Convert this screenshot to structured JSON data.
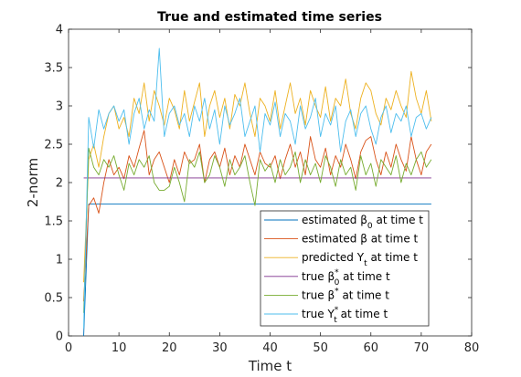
{
  "chart_data": {
    "type": "line",
    "title": "True and estimated time series",
    "xlabel": "Time t",
    "ylabel": "2-norm",
    "xlim": [
      0,
      80
    ],
    "ylim": [
      0,
      4
    ],
    "xticks": [
      "0",
      "10",
      "20",
      "30",
      "40",
      "50",
      "60",
      "70",
      "80"
    ],
    "yticks": [
      "0",
      "0.5",
      "1",
      "1.5",
      "2",
      "2.5",
      "3",
      "3.5",
      "4"
    ],
    "grid": false,
    "legend_position": "bottom-right",
    "x": [
      3,
      4,
      5,
      6,
      7,
      8,
      9,
      10,
      11,
      12,
      13,
      14,
      15,
      16,
      17,
      18,
      19,
      20,
      21,
      22,
      23,
      24,
      25,
      26,
      27,
      28,
      29,
      30,
      31,
      32,
      33,
      34,
      35,
      36,
      37,
      38,
      39,
      40,
      41,
      42,
      43,
      44,
      45,
      46,
      47,
      48,
      49,
      50,
      51,
      52,
      53,
      54,
      55,
      56,
      57,
      58,
      59,
      60,
      61,
      62,
      63,
      64,
      65,
      66,
      67,
      68,
      69,
      70,
      71,
      72
    ],
    "series": [
      {
        "name": "estimated β0 at time t",
        "color": "#0072bd",
        "values": [
          0.0,
          1.72,
          1.72,
          1.72,
          1.72,
          1.72,
          1.72,
          1.72,
          1.72,
          1.72,
          1.72,
          1.72,
          1.72,
          1.72,
          1.72,
          1.72,
          1.72,
          1.72,
          1.72,
          1.72,
          1.72,
          1.72,
          1.72,
          1.72,
          1.72,
          1.72,
          1.72,
          1.72,
          1.72,
          1.72,
          1.72,
          1.72,
          1.72,
          1.72,
          1.72,
          1.72,
          1.72,
          1.72,
          1.72,
          1.72,
          1.72,
          1.72,
          1.72,
          1.72,
          1.72,
          1.72,
          1.72,
          1.72,
          1.72,
          1.72,
          1.72,
          1.72,
          1.72,
          1.72,
          1.72,
          1.72,
          1.72,
          1.72,
          1.72,
          1.72,
          1.72,
          1.72,
          1.72,
          1.72,
          1.72,
          1.72,
          1.72,
          1.72,
          1.72,
          1.72
        ]
      },
      {
        "name": "estimated β at time t",
        "color": "#d95319",
        "values": [
          0.45,
          1.7,
          1.8,
          1.6,
          2.0,
          2.3,
          2.1,
          2.2,
          2.05,
          2.35,
          2.2,
          2.45,
          2.68,
          2.1,
          2.3,
          2.4,
          2.2,
          2.0,
          2.3,
          2.1,
          2.4,
          2.25,
          2.3,
          2.5,
          2.0,
          2.3,
          2.4,
          2.2,
          2.45,
          2.1,
          2.35,
          2.2,
          2.5,
          2.3,
          2.1,
          2.4,
          2.25,
          2.2,
          2.35,
          2.05,
          2.3,
          2.5,
          2.2,
          2.4,
          2.1,
          2.6,
          2.3,
          2.2,
          2.45,
          2.1,
          2.35,
          2.2,
          2.5,
          2.3,
          2.05,
          2.4,
          2.55,
          2.6,
          2.3,
          2.1,
          2.4,
          2.2,
          2.5,
          2.3,
          2.15,
          2.6,
          2.3,
          2.1,
          2.4,
          2.5
        ]
      },
      {
        "name": "predicted Yt at time t",
        "color": "#edb120",
        "values": [
          0.7,
          2.3,
          2.5,
          2.2,
          2.6,
          2.9,
          3.0,
          2.7,
          2.85,
          2.6,
          3.1,
          2.9,
          3.3,
          2.8,
          3.2,
          3.0,
          2.75,
          3.1,
          2.95,
          2.7,
          3.2,
          2.8,
          3.05,
          3.3,
          2.6,
          3.0,
          3.2,
          2.85,
          3.1,
          2.7,
          3.15,
          3.0,
          3.3,
          2.9,
          2.6,
          3.1,
          3.0,
          2.8,
          3.2,
          2.7,
          3.0,
          3.3,
          2.9,
          3.1,
          2.75,
          3.2,
          3.0,
          2.85,
          3.25,
          2.8,
          3.1,
          3.0,
          3.35,
          2.9,
          2.7,
          3.1,
          3.3,
          3.2,
          2.9,
          2.75,
          3.1,
          2.95,
          3.2,
          3.0,
          2.85,
          3.45,
          3.1,
          2.9,
          3.2,
          2.8
        ]
      },
      {
        "name": "true β0* at time t",
        "color": "#7e2f8e",
        "values": [
          2.06,
          2.06,
          2.06,
          2.06,
          2.06,
          2.06,
          2.06,
          2.06,
          2.06,
          2.06,
          2.06,
          2.06,
          2.06,
          2.06,
          2.06,
          2.06,
          2.06,
          2.06,
          2.06,
          2.06,
          2.06,
          2.06,
          2.06,
          2.06,
          2.06,
          2.06,
          2.06,
          2.06,
          2.06,
          2.06,
          2.06,
          2.06,
          2.06,
          2.06,
          2.06,
          2.06,
          2.06,
          2.06,
          2.06,
          2.06,
          2.06,
          2.06,
          2.06,
          2.06,
          2.06,
          2.06,
          2.06,
          2.06,
          2.06,
          2.06,
          2.06,
          2.06,
          2.06,
          2.06,
          2.06,
          2.06,
          2.06,
          2.06,
          2.06,
          2.06,
          2.06,
          2.06,
          2.06,
          2.06,
          2.06,
          2.06,
          2.06,
          2.06,
          2.06,
          2.06
        ]
      },
      {
        "name": "true β* at time t",
        "color": "#77ac30",
        "values": [
          0.3,
          2.45,
          2.2,
          2.1,
          2.3,
          2.2,
          2.35,
          2.1,
          1.9,
          2.25,
          2.1,
          2.3,
          2.2,
          2.35,
          2.0,
          1.9,
          1.9,
          1.95,
          2.2,
          2.0,
          1.75,
          2.3,
          2.2,
          2.4,
          2.0,
          2.1,
          2.35,
          2.2,
          1.95,
          2.3,
          2.1,
          2.2,
          2.35,
          2.0,
          1.7,
          2.3,
          2.15,
          2.25,
          2.0,
          2.3,
          2.1,
          2.2,
          2.4,
          2.0,
          2.3,
          2.1,
          2.25,
          2.0,
          2.35,
          2.2,
          1.95,
          2.3,
          2.1,
          2.2,
          1.9,
          2.35,
          2.1,
          2.25,
          1.95,
          2.3,
          2.2,
          2.1,
          2.35,
          2.0,
          2.25,
          2.1,
          2.3,
          2.4,
          2.2,
          2.3
        ]
      },
      {
        "name": "true Yt* at time t",
        "color": "#4dbeee",
        "values": [
          0.1,
          2.85,
          2.45,
          2.95,
          2.7,
          2.9,
          3.0,
          2.8,
          2.95,
          2.5,
          2.9,
          3.1,
          2.7,
          2.95,
          2.8,
          3.75,
          2.6,
          2.9,
          3.0,
          2.75,
          2.9,
          2.6,
          3.0,
          2.8,
          3.1,
          2.7,
          2.95,
          2.5,
          3.0,
          2.75,
          2.9,
          3.1,
          2.6,
          2.8,
          3.0,
          2.4,
          2.9,
          2.75,
          3.05,
          2.6,
          2.9,
          2.8,
          2.5,
          3.0,
          2.7,
          2.85,
          3.1,
          2.6,
          2.9,
          2.75,
          3.0,
          2.4,
          2.8,
          2.95,
          2.6,
          2.9,
          3.0,
          2.7,
          2.5,
          2.85,
          3.0,
          2.65,
          2.9,
          2.8,
          3.0,
          2.6,
          2.85,
          2.9,
          2.7,
          2.85
        ]
      }
    ]
  },
  "legend": [
    {
      "prefix": "estimated ",
      "sym": "β",
      "sub": "0",
      "sup": "",
      "suffix": " at time t"
    },
    {
      "prefix": "estimated ",
      "sym": "β",
      "sub": "",
      "sup": "",
      "suffix": " at time t"
    },
    {
      "prefix": "predicted ",
      "sym": "Y",
      "sub": "t",
      "sup": "",
      "suffix": " at time t"
    },
    {
      "prefix": "true ",
      "sym": "β",
      "sub": "0",
      "sup": "*",
      "suffix": " at time t"
    },
    {
      "prefix": "true ",
      "sym": "β",
      "sub": "",
      "sup": "*",
      "suffix": " at time t"
    },
    {
      "prefix": "true ",
      "sym": "Y",
      "sub": "t",
      "sup": "*",
      "suffix": " at time t"
    }
  ]
}
